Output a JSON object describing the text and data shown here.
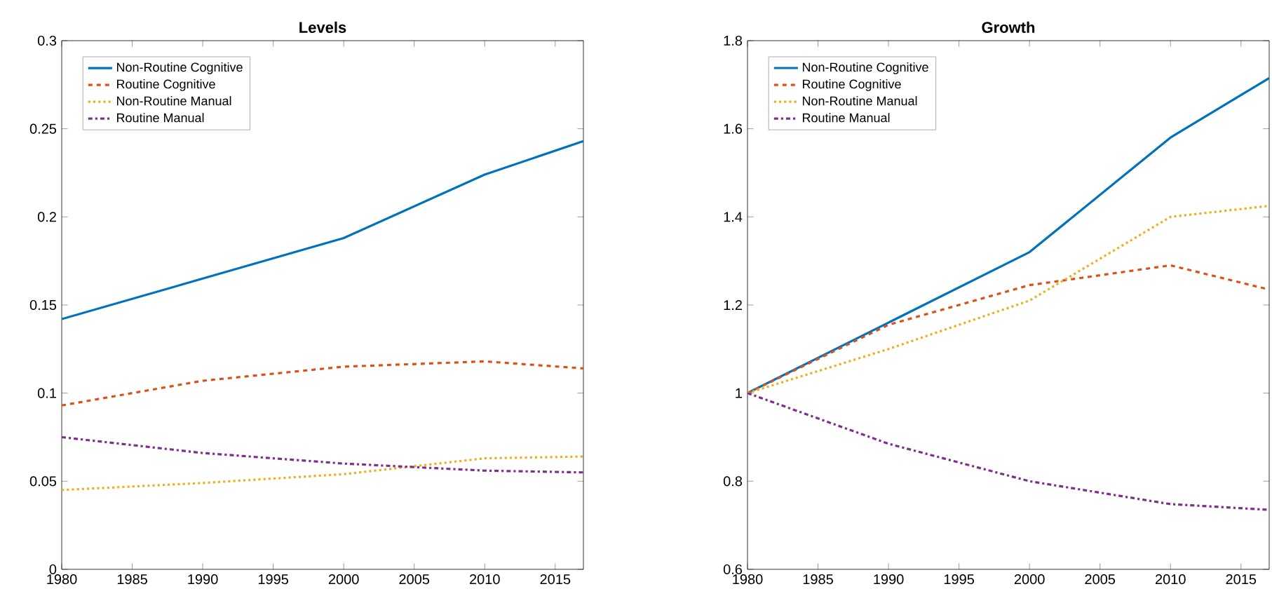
{
  "chart_data": [
    {
      "type": "line",
      "title": "Levels",
      "x": [
        1980,
        1990,
        2000,
        2010,
        2017
      ],
      "xlim": [
        1980,
        2017
      ],
      "xticks": [
        1980,
        1985,
        1990,
        1995,
        2000,
        2005,
        2010,
        2015
      ],
      "ylim": [
        0,
        0.3
      ],
      "yticks": [
        0,
        0.05,
        0.1,
        0.15,
        0.2,
        0.25,
        0.3
      ],
      "legend": "top left",
      "series": [
        {
          "name": "Non-Routine Cognitive",
          "color": "#0072bd",
          "line_style": "solid",
          "values": [
            0.142,
            0.165,
            0.188,
            0.224,
            0.243
          ]
        },
        {
          "name": "Routine Cognitive",
          "color": "#d95319",
          "line_style": "dashed",
          "values": [
            0.093,
            0.107,
            0.115,
            0.118,
            0.114
          ]
        },
        {
          "name": "Non-Routine Manual",
          "color": "#edb120",
          "line_style": "dotted",
          "values": [
            0.045,
            0.049,
            0.054,
            0.063,
            0.064
          ]
        },
        {
          "name": "Routine Manual",
          "color": "#7e2f8e",
          "line_style": "dashdot",
          "values": [
            0.075,
            0.066,
            0.06,
            0.056,
            0.055
          ]
        }
      ]
    },
    {
      "type": "line",
      "title": "Growth",
      "x": [
        1980,
        1990,
        2000,
        2010,
        2017
      ],
      "xlim": [
        1980,
        2017
      ],
      "xticks": [
        1980,
        1985,
        1990,
        1995,
        2000,
        2005,
        2010,
        2015
      ],
      "ylim": [
        0.6,
        1.8
      ],
      "yticks": [
        0.6,
        0.8,
        1,
        1.2,
        1.4,
        1.6,
        1.8
      ],
      "legend": "top left",
      "series": [
        {
          "name": "Non-Routine Cognitive",
          "color": "#0072bd",
          "line_style": "solid",
          "values": [
            1,
            1.16,
            1.32,
            1.58,
            1.715
          ]
        },
        {
          "name": "Routine Cognitive",
          "color": "#d95319",
          "line_style": "dashed",
          "values": [
            1,
            1.155,
            1.245,
            1.29,
            1.235
          ]
        },
        {
          "name": "Non-Routine Manual",
          "color": "#edb120",
          "line_style": "dotted",
          "values": [
            1,
            1.1,
            1.21,
            1.4,
            1.425
          ]
        },
        {
          "name": "Routine Manual",
          "color": "#7e2f8e",
          "line_style": "dashdot",
          "values": [
            1,
            0.885,
            0.8,
            0.748,
            0.735
          ]
        }
      ]
    }
  ]
}
